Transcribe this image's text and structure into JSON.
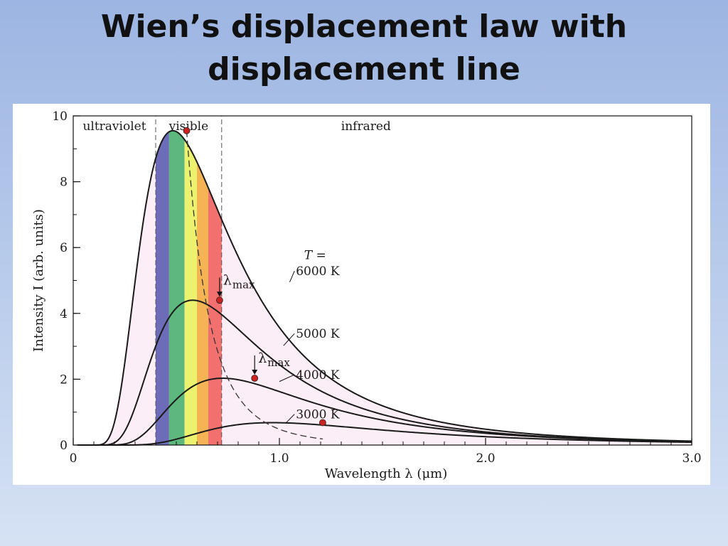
{
  "slide": {
    "title_line1": "Wien’s displacement law with",
    "title_line2": "displacement line"
  },
  "chart_data": {
    "type": "line",
    "xlabel": "Wavelength λ (μm)",
    "ylabel": "Intensity I (arb. units)",
    "xlim": [
      0,
      3.0
    ],
    "ylim": [
      0,
      10
    ],
    "xticks": [
      0,
      1.0,
      2.0,
      3.0
    ],
    "xtick_labels": [
      "0",
      "1.0",
      "2.0",
      "3.0"
    ],
    "yticks": [
      0,
      2,
      4,
      6,
      8,
      10
    ],
    "ytick_labels": [
      "0",
      "2",
      "4",
      "6",
      "8",
      "10"
    ],
    "minor_xtick_step": 0.1,
    "minor_ytick_step": 1,
    "regions": [
      {
        "label": "ultraviolet",
        "x_from": 0,
        "x_to": 0.4
      },
      {
        "label": "visible",
        "x_from": 0.4,
        "x_to": 0.72
      },
      {
        "label": "infrared",
        "x_from": 0.72,
        "x_to": 3.0
      }
    ],
    "region_boundaries": [
      0.4,
      0.72
    ],
    "temperature_prefix": "T =",
    "series": [
      {
        "name": "6000 K",
        "temperature_K": 6000,
        "peak": [
          0.55,
          9.55
        ],
        "label_at": [
          1.05,
          5.1
        ]
      },
      {
        "name": "5000 K",
        "temperature_K": 5000,
        "peak": [
          0.71,
          4.4
        ],
        "label_at": [
          1.05,
          3.3
        ]
      },
      {
        "name": "4000 K",
        "temperature_K": 4000,
        "peak": [
          0.88,
          2.03
        ],
        "label_at": [
          1.05,
          2.1
        ]
      },
      {
        "name": "3000 K",
        "temperature_K": 3000,
        "peak": [
          1.21,
          0.68
        ],
        "label_at": [
          1.05,
          0.9
        ]
      }
    ],
    "displacement_line": {
      "style": "dashed",
      "through": "peaks"
    },
    "annotations": [
      {
        "text": "λmax",
        "series": "5000 K"
      },
      {
        "text": "λmax",
        "series": "4000 K"
      }
    ],
    "visible_bands": [
      {
        "from": 0.4,
        "to": 0.465,
        "color": "#6c6cb8"
      },
      {
        "from": 0.465,
        "to": 0.54,
        "color": "#5cb87c"
      },
      {
        "from": 0.54,
        "to": 0.6,
        "color": "#ecf26e"
      },
      {
        "from": 0.6,
        "to": 0.655,
        "color": "#f5b454"
      },
      {
        "from": 0.655,
        "to": 0.72,
        "color": "#f2706e"
      }
    ],
    "colors": {
      "curve": "#1a1a1a",
      "fill": "#fceef6",
      "peak_marker": "#cc2222"
    }
  }
}
